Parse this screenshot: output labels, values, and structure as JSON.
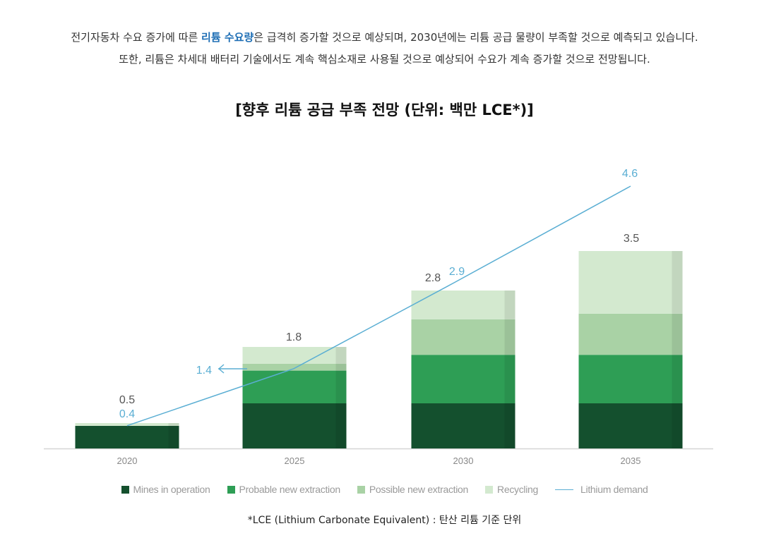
{
  "intro": {
    "line1_before": "전기자동차 수요 증가에 따른 ",
    "line1_highlight": "리튬 수요량",
    "line1_after": "은 급격히 증가할 것으로 예상되며, 2030년에는 리튬 공급 물량이 부족할 것으로 예측되고 있습니다.",
    "line2": "또한, 리튬은 차세대 배터리 기술에서도 계속 핵심소재로 사용될 것으로 예상되어 수요가 계속 증가할 것으로 전망됩니다."
  },
  "colors": {
    "mines": "#14502e",
    "probable": "#2e9e55",
    "possible": "#a9d2a5",
    "recycling": "#d3e9cf",
    "demand_line": "#5aaed3",
    "highlight": "#1f6fb5"
  },
  "chart_data": {
    "type": "bar",
    "title": "[향후 리튬 공급 부족 전망 (단위: 백만 LCE*)]",
    "xlabel": "",
    "ylabel": "",
    "ylim": [
      0,
      5
    ],
    "categories": [
      "2020",
      "2025",
      "2030",
      "2035"
    ],
    "series": [
      {
        "name": "Mines in operation",
        "values": [
          0.4,
          0.8,
          0.8,
          0.8
        ]
      },
      {
        "name": "Probable new extraction",
        "values": [
          0,
          0.58,
          0.86,
          0.86
        ]
      },
      {
        "name": "Possible new extraction",
        "values": [
          0,
          0.12,
          0.63,
          0.73
        ]
      },
      {
        "name": "Recycling",
        "values": [
          0.05,
          0.3,
          0.51,
          1.11
        ]
      }
    ],
    "stack_totals": [
      0.5,
      1.8,
      2.8,
      3.5
    ],
    "stack_total_labels": [
      "0.5",
      "1.8",
      "2.8",
      "3.5"
    ],
    "line_series": {
      "name": "Lithium demand",
      "values": [
        0.4,
        1.4,
        2.9,
        4.6
      ],
      "labels": [
        "0.4",
        "1.4",
        "2.9",
        "4.6"
      ]
    }
  },
  "legend": {
    "mines": "Mines in operation",
    "probable": "Probable new extraction",
    "possible": "Possible new extraction",
    "recycling": "Recycling",
    "demand": "Lithium demand"
  },
  "footnote": "*LCE (Lithium Carbonate Equivalent) : 탄산 리튬 기준 단위"
}
